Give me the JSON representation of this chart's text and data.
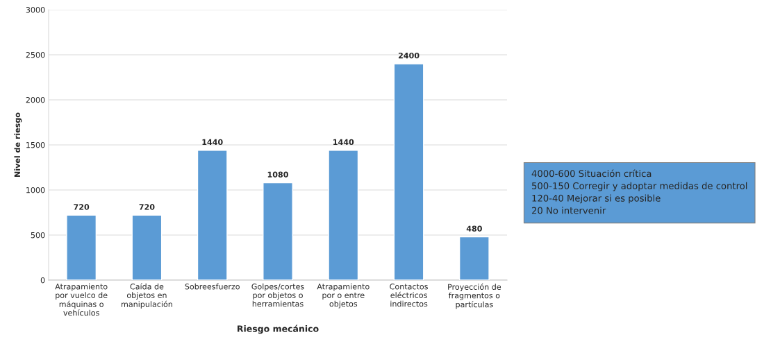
{
  "chart_data": {
    "type": "bar",
    "xlabel": "Riesgo mecánico",
    "ylabel": "Nivel de riesgo",
    "categories": [
      "Atrapamiento\npor vuelco de\nmáquinas o\nvehículos",
      "Caída de\nobjetos en\nmanipulación",
      "Sobreesfuerzo",
      "Golpes/cortes\npor objetos o\nherramientas",
      "Atrapamiento\npor o entre\nobjetos",
      "Contactos\neléctricos\nindirectos",
      "Proyección de\nfragmentos o\npartículas"
    ],
    "values": [
      720,
      720,
      1440,
      1080,
      1440,
      2400,
      480
    ],
    "color": "#5b9bd5",
    "ylim": [
      0,
      3000
    ],
    "yticks": [
      0,
      500,
      1000,
      1500,
      2000,
      2500,
      3000
    ],
    "grid": "y",
    "data_labels": true,
    "annotations": [
      "4000-600 Situación crítica\n500-150 Corregir y adoptar medidas de control\n120-40 Mejorar si es posible\n20 No intervenir"
    ]
  }
}
